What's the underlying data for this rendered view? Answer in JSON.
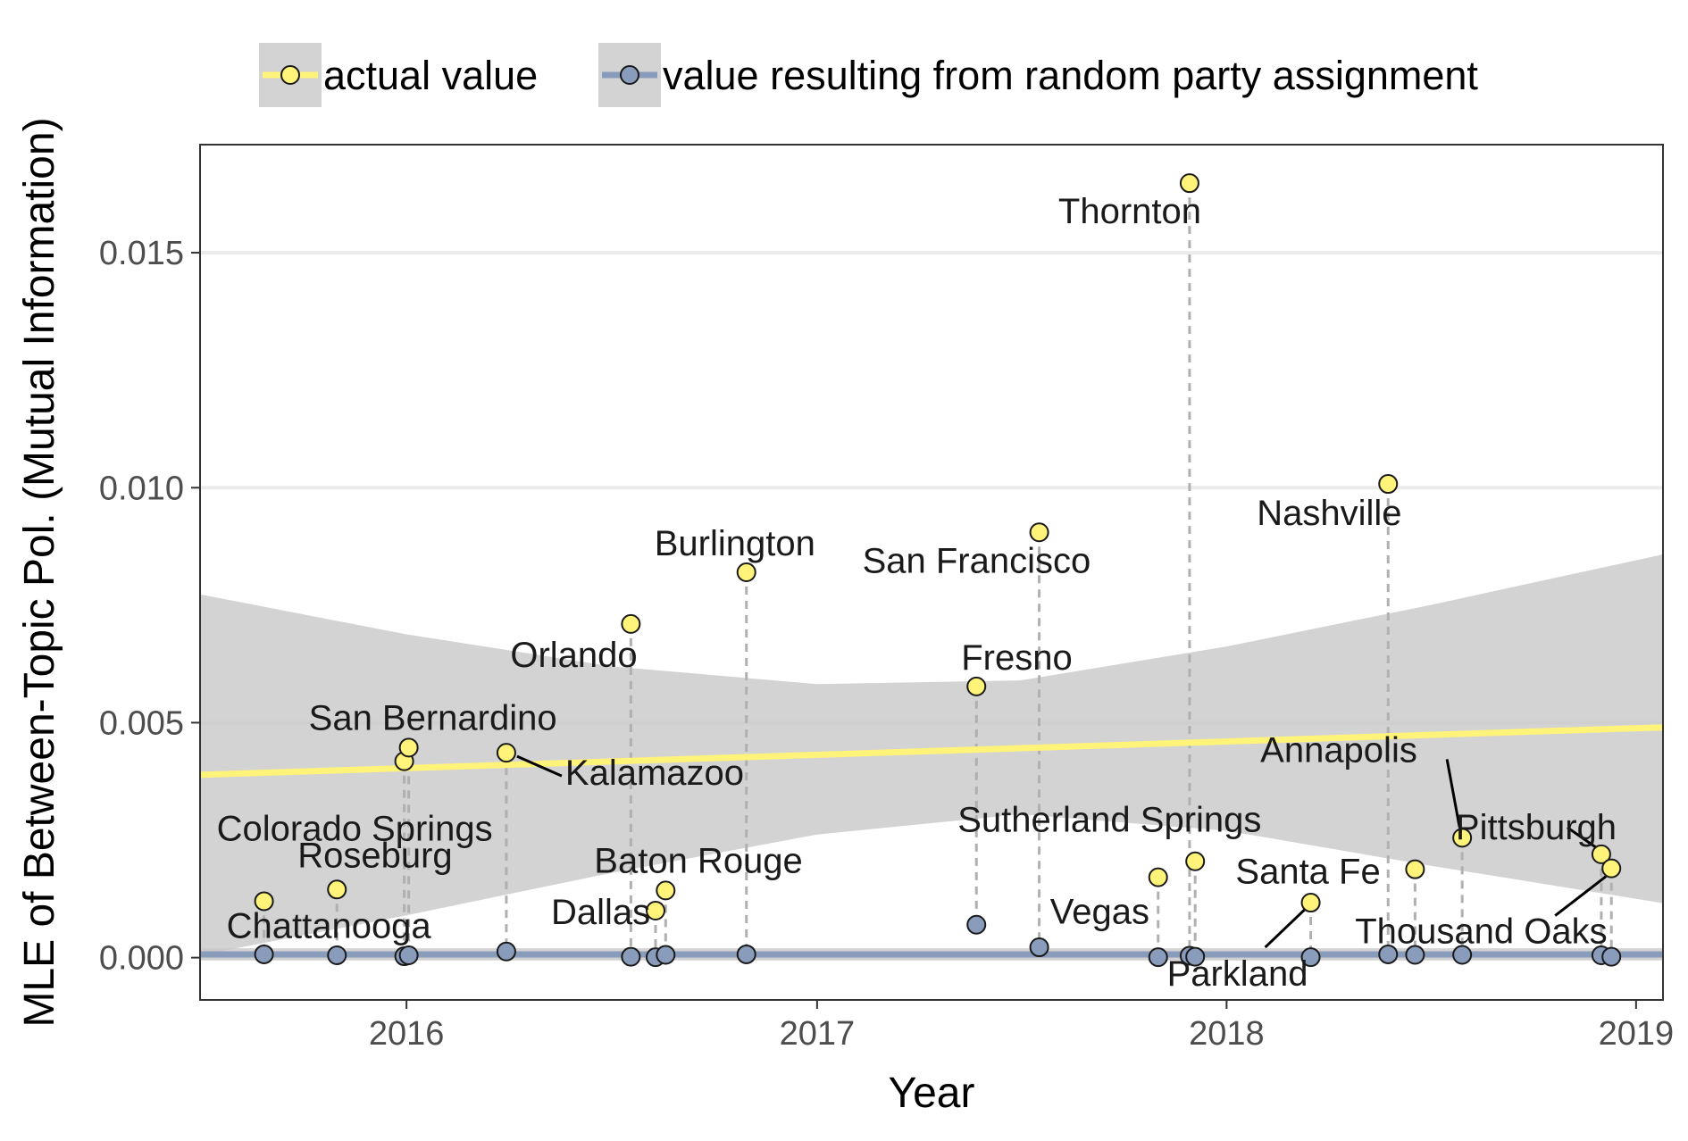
{
  "chart_data": {
    "type": "scatter",
    "xlabel": "Year",
    "ylabel": "MLE of Between-Topic Pol. (Mutual Information)",
    "xlim": [
      "2015-07-01",
      "2019-01-25"
    ],
    "ylim": [
      -0.0009,
      0.0173
    ],
    "x_ticks": [
      {
        "date": "2016-01-01",
        "label": "2016"
      },
      {
        "date": "2017-01-01",
        "label": "2017"
      },
      {
        "date": "2018-01-01",
        "label": "2018"
      },
      {
        "date": "2019-01-01",
        "label": "2019"
      }
    ],
    "y_ticks": [
      {
        "value": 0.0,
        "label": "0.000"
      },
      {
        "value": 0.005,
        "label": "0.005"
      },
      {
        "value": 0.01,
        "label": "0.010"
      },
      {
        "value": 0.015,
        "label": "0.015"
      }
    ],
    "grid": true,
    "legend": {
      "placement": "top",
      "entries": [
        {
          "label": "actual value",
          "color": "#fff37a",
          "line_color": "#fff37a"
        },
        {
          "label": "value resulting from random party assignment",
          "color": "#8a9cbb",
          "line_color": "#8a9cbb"
        }
      ]
    },
    "series": [
      {
        "name": "actual value",
        "color": "#fff37a",
        "points": [
          {
            "date": "2015-08-27",
            "value": 0.0012
          },
          {
            "date": "2015-10-31",
            "value": 0.00145
          },
          {
            "date": "2015-12-30",
            "value": 0.00418
          },
          {
            "date": "2016-01-03",
            "value": 0.00447
          },
          {
            "date": "2016-03-30",
            "value": 0.00436
          },
          {
            "date": "2016-07-19",
            "value": 0.0071
          },
          {
            "date": "2016-08-10",
            "value": 0.001
          },
          {
            "date": "2016-08-19",
            "value": 0.00143
          },
          {
            "date": "2016-10-30",
            "value": 0.0082
          },
          {
            "date": "2017-05-23",
            "value": 0.00577
          },
          {
            "date": "2017-07-18",
            "value": 0.00905
          },
          {
            "date": "2017-11-01",
            "value": 0.00171
          },
          {
            "date": "2017-11-29",
            "value": 0.01648
          },
          {
            "date": "2017-12-04",
            "value": 0.00205
          },
          {
            "date": "2018-03-17",
            "value": 0.00117
          },
          {
            "date": "2018-05-25",
            "value": 0.01008
          },
          {
            "date": "2018-06-18",
            "value": 0.00188
          },
          {
            "date": "2018-07-30",
            "value": 0.00255
          },
          {
            "date": "2018-12-01",
            "value": 0.0022
          },
          {
            "date": "2018-12-10",
            "value": 0.0019
          }
        ],
        "trend": {
          "start": {
            "date": "2015-07-01",
            "value": 0.00389
          },
          "end": {
            "date": "2019-01-25",
            "value": 0.0049
          },
          "band_upper": [
            {
              "date": "2015-07-01",
              "value": 0.00773
            },
            {
              "date": "2016-01-01",
              "value": 0.00688
            },
            {
              "date": "2016-07-01",
              "value": 0.0062
            },
            {
              "date": "2017-01-01",
              "value": 0.00582
            },
            {
              "date": "2017-07-01",
              "value": 0.0059
            },
            {
              "date": "2018-01-01",
              "value": 0.00662
            },
            {
              "date": "2018-07-01",
              "value": 0.0075
            },
            {
              "date": "2019-01-25",
              "value": 0.00858
            }
          ],
          "band_lower": [
            {
              "date": "2015-07-01",
              "value": 5e-05
            },
            {
              "date": "2016-01-01",
              "value": 0.0009
            },
            {
              "date": "2016-07-01",
              "value": 0.0018
            },
            {
              "date": "2017-01-01",
              "value": 0.00262
            },
            {
              "date": "2017-07-01",
              "value": 0.00305
            },
            {
              "date": "2018-01-01",
              "value": 0.0027
            },
            {
              "date": "2018-07-01",
              "value": 0.00196
            },
            {
              "date": "2019-01-25",
              "value": 0.00116
            }
          ]
        }
      },
      {
        "name": "value resulting from random party assignment",
        "color": "#8a9cbb",
        "points": [
          {
            "date": "2015-08-27",
            "value": 7e-05
          },
          {
            "date": "2015-10-31",
            "value": 5e-05
          },
          {
            "date": "2015-12-30",
            "value": 3e-05
          },
          {
            "date": "2016-01-03",
            "value": 5e-05
          },
          {
            "date": "2016-03-30",
            "value": 0.00013
          },
          {
            "date": "2016-07-19",
            "value": 2e-05
          },
          {
            "date": "2016-08-10",
            "value": 1e-05
          },
          {
            "date": "2016-08-19",
            "value": 6e-05
          },
          {
            "date": "2016-10-30",
            "value": 7e-05
          },
          {
            "date": "2017-05-23",
            "value": 0.0007
          },
          {
            "date": "2017-07-18",
            "value": 0.00022
          },
          {
            "date": "2017-11-01",
            "value": 1e-05
          },
          {
            "date": "2017-11-29",
            "value": 4e-05
          },
          {
            "date": "2017-12-04",
            "value": 2e-05
          },
          {
            "date": "2018-03-17",
            "value": 1e-05
          },
          {
            "date": "2018-05-25",
            "value": 7e-05
          },
          {
            "date": "2018-06-18",
            "value": 6e-05
          },
          {
            "date": "2018-07-30",
            "value": 6e-05
          },
          {
            "date": "2018-12-01",
            "value": 5e-05
          },
          {
            "date": "2018-12-10",
            "value": 2e-05
          }
        ],
        "trend": {
          "start": {
            "date": "2015-07-01",
            "value": 7e-05
          },
          "end": {
            "date": "2019-01-25",
            "value": 7e-05
          },
          "band_upper": [
            {
              "date": "2015-07-01",
              "value": 0.0002
            },
            {
              "date": "2019-01-25",
              "value": 0.0002
            }
          ],
          "band_lower": [
            {
              "date": "2015-07-01",
              "value": -6e-05
            },
            {
              "date": "2019-01-25",
              "value": -6e-05
            }
          ]
        }
      }
    ],
    "annotations": [
      {
        "text": "Chattanooga",
        "date": "2015-08-27",
        "value": 0.0012
      },
      {
        "text": "Roseburg",
        "date": "2015-10-31",
        "value": 0.00145
      },
      {
        "text": "Colorado Springs",
        "date": "2015-12-30",
        "value": 0.00418
      },
      {
        "text": "San Bernardino",
        "date": "2016-01-03",
        "value": 0.00447
      },
      {
        "text": "Kalamazoo",
        "date": "2016-03-30",
        "value": 0.00436
      },
      {
        "text": "Orlando",
        "date": "2016-07-19",
        "value": 0.0071
      },
      {
        "text": "Dallas",
        "date": "2016-08-10",
        "value": 0.001
      },
      {
        "text": "Baton Rouge",
        "date": "2016-08-19",
        "value": 0.00143
      },
      {
        "text": "Burlington",
        "date": "2016-10-30",
        "value": 0.0082
      },
      {
        "text": "Fresno",
        "date": "2017-05-23",
        "value": 0.00577
      },
      {
        "text": "San Francisco",
        "date": "2017-07-18",
        "value": 0.00905
      },
      {
        "text": "Vegas",
        "date": "2017-11-01",
        "value": 0.00171
      },
      {
        "text": "Thornton",
        "date": "2017-11-29",
        "value": 0.01648
      },
      {
        "text": "Sutherland Springs",
        "date": "2017-12-04",
        "value": 0.00205
      },
      {
        "text": "Parkland",
        "date": "2018-03-17",
        "value": 0.00117
      },
      {
        "text": "Nashville",
        "date": "2018-05-25",
        "value": 0.01008
      },
      {
        "text": "Santa Fe",
        "date": "2018-06-18",
        "value": 0.00188
      },
      {
        "text": "Annapolis",
        "date": "2018-07-30",
        "value": 0.00255
      },
      {
        "text": "Pittsburgh",
        "date": "2018-12-01",
        "value": 0.0022
      },
      {
        "text": "Thousand Oaks",
        "date": "2018-12-10",
        "value": 0.0019
      }
    ]
  }
}
